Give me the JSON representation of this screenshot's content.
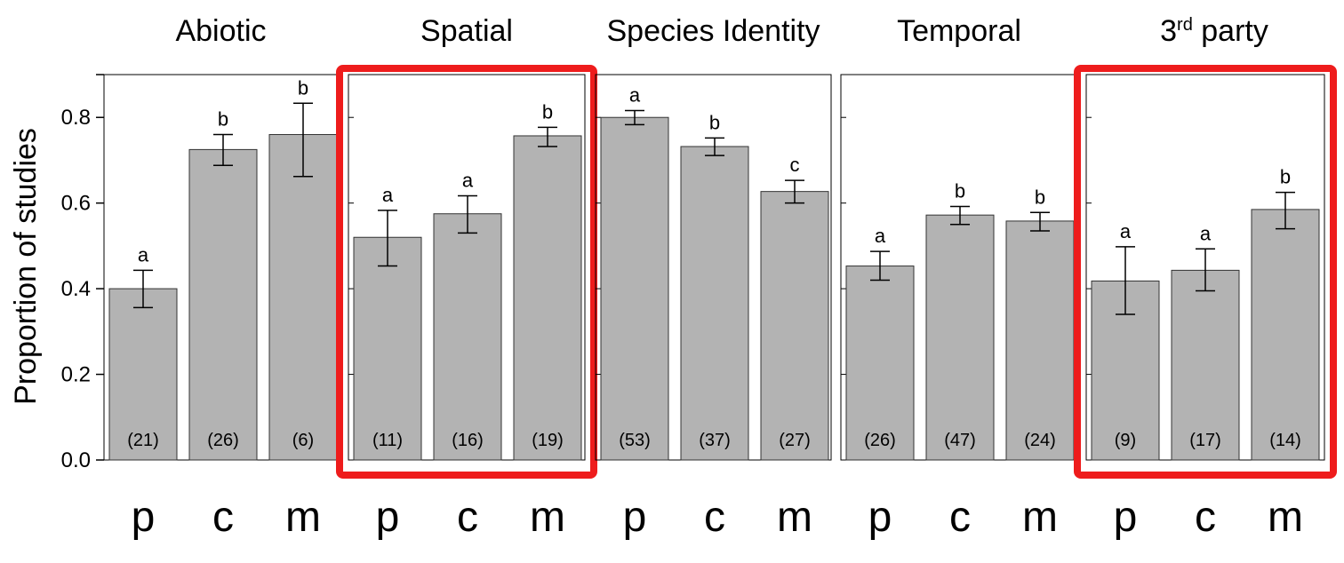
{
  "chart_data": {
    "type": "bar",
    "ylabel": "Proportion of studies",
    "ylim": [
      0,
      0.9
    ],
    "yticks": [
      "0.0",
      "0.2",
      "0.4",
      "0.6",
      "0.8"
    ],
    "grid": false,
    "highlight_color": "#ee1c1c",
    "bar_color": "#b3b3b3",
    "panels": [
      {
        "title": "Abiotic",
        "highlighted": false,
        "categories": [
          "p",
          "c",
          "m"
        ],
        "values": [
          0.4,
          0.725,
          0.76
        ],
        "error_low": [
          0.356,
          0.688,
          0.662
        ],
        "error_high": [
          0.443,
          0.76,
          0.833
        ],
        "significance": [
          "a",
          "b",
          "b"
        ],
        "counts": [
          "(21)",
          "(26)",
          "(6)"
        ]
      },
      {
        "title": "Spatial",
        "highlighted": true,
        "categories": [
          "p",
          "c",
          "m"
        ],
        "values": [
          0.52,
          0.575,
          0.757
        ],
        "error_low": [
          0.453,
          0.53,
          0.732
        ],
        "error_high": [
          0.583,
          0.617,
          0.777
        ],
        "significance": [
          "a",
          "a",
          "b"
        ],
        "counts": [
          "(11)",
          "(16)",
          "(19)"
        ]
      },
      {
        "title": "Species Identity",
        "highlighted": false,
        "categories": [
          "p",
          "c",
          "m"
        ],
        "values": [
          0.8,
          0.732,
          0.627
        ],
        "error_low": [
          0.783,
          0.711,
          0.6
        ],
        "error_high": [
          0.816,
          0.752,
          0.653
        ],
        "significance": [
          "a",
          "b",
          "c"
        ],
        "counts": [
          "(53)",
          "(37)",
          "(27)"
        ]
      },
      {
        "title": "Temporal",
        "highlighted": false,
        "categories": [
          "p",
          "c",
          "m"
        ],
        "values": [
          0.453,
          0.572,
          0.558
        ],
        "error_low": [
          0.42,
          0.55,
          0.535
        ],
        "error_high": [
          0.487,
          0.592,
          0.578
        ],
        "significance": [
          "a",
          "b",
          "b"
        ],
        "counts": [
          "(26)",
          "(47)",
          "(24)"
        ]
      },
      {
        "title": "3",
        "title_sup": "rd",
        "title_rest": " party",
        "highlighted": true,
        "categories": [
          "p",
          "c",
          "m"
        ],
        "values": [
          0.418,
          0.443,
          0.585
        ],
        "error_low": [
          0.34,
          0.395,
          0.54
        ],
        "error_high": [
          0.498,
          0.493,
          0.625
        ],
        "significance": [
          "a",
          "a",
          "b"
        ],
        "counts": [
          "(9)",
          "(17)",
          "(14)"
        ]
      }
    ]
  }
}
